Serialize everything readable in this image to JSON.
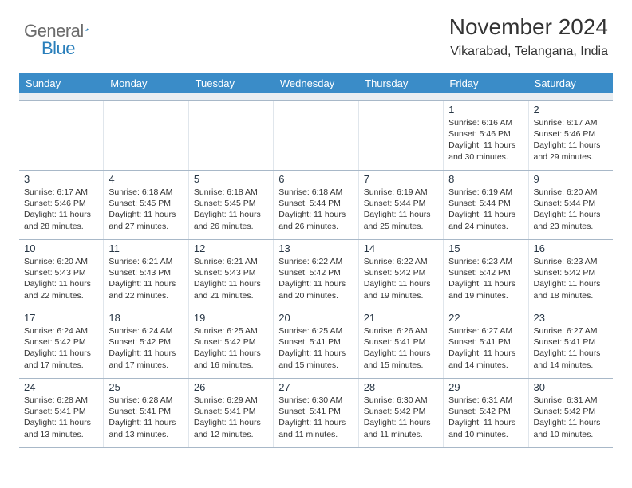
{
  "logo": {
    "part1": "General",
    "part2": "Blue"
  },
  "header": {
    "month": "November 2024",
    "location": "Vikarabad, Telangana, India"
  },
  "colors": {
    "dow_bg": "#3a8cc8",
    "dow_text": "#ffffff",
    "logo_gray": "#6b6b6b",
    "logo_blue": "#2a7fbb",
    "grid_line": "#a8b8c8",
    "spacer_bg": "#e9eef2"
  },
  "dow": [
    "Sunday",
    "Monday",
    "Tuesday",
    "Wednesday",
    "Thursday",
    "Friday",
    "Saturday"
  ],
  "weeks": [
    [
      null,
      null,
      null,
      null,
      null,
      {
        "n": "1",
        "sr": "6:16 AM",
        "ss": "5:46 PM",
        "dl": "11 hours and 30 minutes."
      },
      {
        "n": "2",
        "sr": "6:17 AM",
        "ss": "5:46 PM",
        "dl": "11 hours and 29 minutes."
      }
    ],
    [
      {
        "n": "3",
        "sr": "6:17 AM",
        "ss": "5:46 PM",
        "dl": "11 hours and 28 minutes."
      },
      {
        "n": "4",
        "sr": "6:18 AM",
        "ss": "5:45 PM",
        "dl": "11 hours and 27 minutes."
      },
      {
        "n": "5",
        "sr": "6:18 AM",
        "ss": "5:45 PM",
        "dl": "11 hours and 26 minutes."
      },
      {
        "n": "6",
        "sr": "6:18 AM",
        "ss": "5:44 PM",
        "dl": "11 hours and 26 minutes."
      },
      {
        "n": "7",
        "sr": "6:19 AM",
        "ss": "5:44 PM",
        "dl": "11 hours and 25 minutes."
      },
      {
        "n": "8",
        "sr": "6:19 AM",
        "ss": "5:44 PM",
        "dl": "11 hours and 24 minutes."
      },
      {
        "n": "9",
        "sr": "6:20 AM",
        "ss": "5:44 PM",
        "dl": "11 hours and 23 minutes."
      }
    ],
    [
      {
        "n": "10",
        "sr": "6:20 AM",
        "ss": "5:43 PM",
        "dl": "11 hours and 22 minutes."
      },
      {
        "n": "11",
        "sr": "6:21 AM",
        "ss": "5:43 PM",
        "dl": "11 hours and 22 minutes."
      },
      {
        "n": "12",
        "sr": "6:21 AM",
        "ss": "5:43 PM",
        "dl": "11 hours and 21 minutes."
      },
      {
        "n": "13",
        "sr": "6:22 AM",
        "ss": "5:42 PM",
        "dl": "11 hours and 20 minutes."
      },
      {
        "n": "14",
        "sr": "6:22 AM",
        "ss": "5:42 PM",
        "dl": "11 hours and 19 minutes."
      },
      {
        "n": "15",
        "sr": "6:23 AM",
        "ss": "5:42 PM",
        "dl": "11 hours and 19 minutes."
      },
      {
        "n": "16",
        "sr": "6:23 AM",
        "ss": "5:42 PM",
        "dl": "11 hours and 18 minutes."
      }
    ],
    [
      {
        "n": "17",
        "sr": "6:24 AM",
        "ss": "5:42 PM",
        "dl": "11 hours and 17 minutes."
      },
      {
        "n": "18",
        "sr": "6:24 AM",
        "ss": "5:42 PM",
        "dl": "11 hours and 17 minutes."
      },
      {
        "n": "19",
        "sr": "6:25 AM",
        "ss": "5:42 PM",
        "dl": "11 hours and 16 minutes."
      },
      {
        "n": "20",
        "sr": "6:25 AM",
        "ss": "5:41 PM",
        "dl": "11 hours and 15 minutes."
      },
      {
        "n": "21",
        "sr": "6:26 AM",
        "ss": "5:41 PM",
        "dl": "11 hours and 15 minutes."
      },
      {
        "n": "22",
        "sr": "6:27 AM",
        "ss": "5:41 PM",
        "dl": "11 hours and 14 minutes."
      },
      {
        "n": "23",
        "sr": "6:27 AM",
        "ss": "5:41 PM",
        "dl": "11 hours and 14 minutes."
      }
    ],
    [
      {
        "n": "24",
        "sr": "6:28 AM",
        "ss": "5:41 PM",
        "dl": "11 hours and 13 minutes."
      },
      {
        "n": "25",
        "sr": "6:28 AM",
        "ss": "5:41 PM",
        "dl": "11 hours and 13 minutes."
      },
      {
        "n": "26",
        "sr": "6:29 AM",
        "ss": "5:41 PM",
        "dl": "11 hours and 12 minutes."
      },
      {
        "n": "27",
        "sr": "6:30 AM",
        "ss": "5:41 PM",
        "dl": "11 hours and 11 minutes."
      },
      {
        "n": "28",
        "sr": "6:30 AM",
        "ss": "5:42 PM",
        "dl": "11 hours and 11 minutes."
      },
      {
        "n": "29",
        "sr": "6:31 AM",
        "ss": "5:42 PM",
        "dl": "11 hours and 10 minutes."
      },
      {
        "n": "30",
        "sr": "6:31 AM",
        "ss": "5:42 PM",
        "dl": "11 hours and 10 minutes."
      }
    ]
  ],
  "labels": {
    "sunrise": "Sunrise: ",
    "sunset": "Sunset: ",
    "daylight": "Daylight: "
  }
}
